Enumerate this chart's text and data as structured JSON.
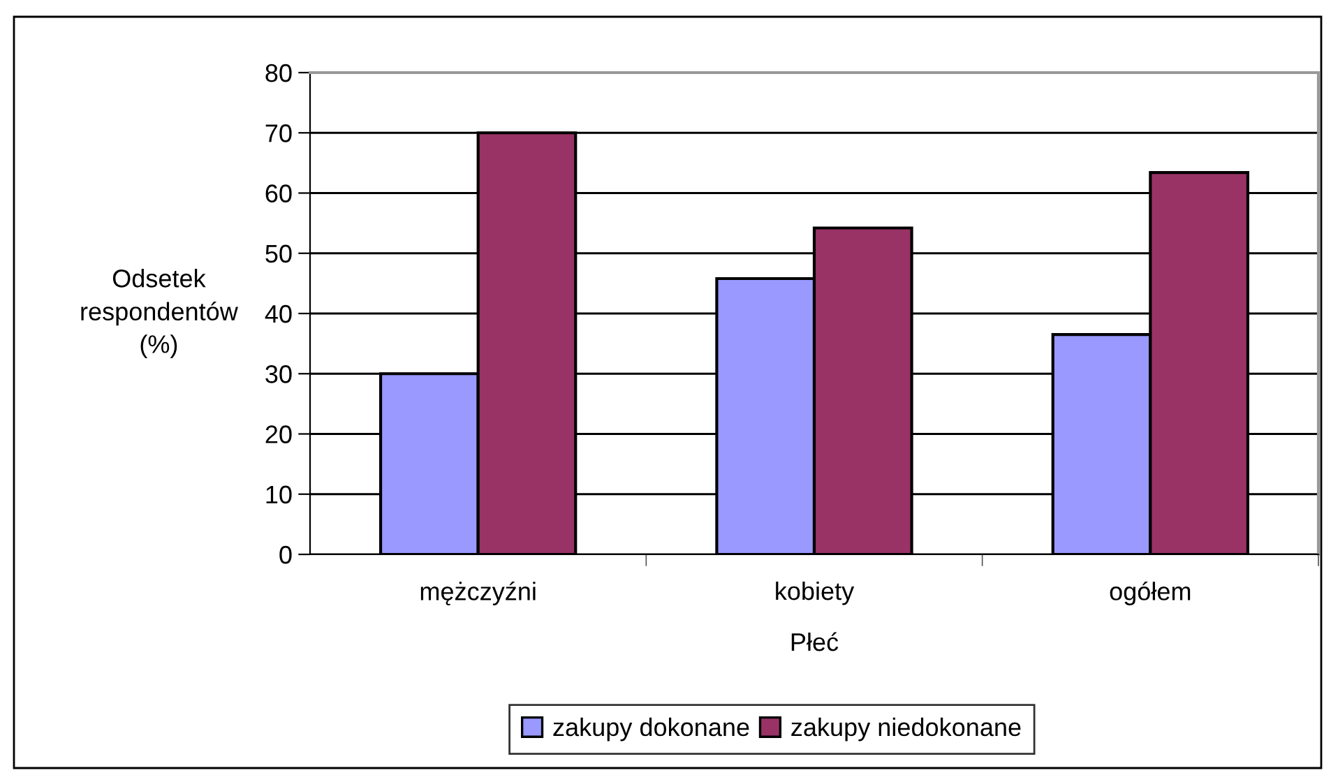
{
  "chart_data": {
    "type": "bar",
    "categories": [
      "mężczyźni",
      "kobiety",
      "ogółem"
    ],
    "series": [
      {
        "name": "zakupy dokonane",
        "color": "#9999ff",
        "values": [
          30,
          45.8,
          36.5
        ]
      },
      {
        "name": "zakupy niedokonane",
        "color": "#993366",
        "values": [
          70,
          54.2,
          63.4
        ]
      }
    ],
    "xlabel": "Płeć",
    "ylabel": "Odsetek\nrespondentów\n(%)",
    "ylim": [
      0,
      80
    ],
    "yticks": [
      0,
      10,
      20,
      30,
      40,
      50,
      60,
      70,
      80
    ],
    "grid": "y",
    "legend": "bottom"
  }
}
